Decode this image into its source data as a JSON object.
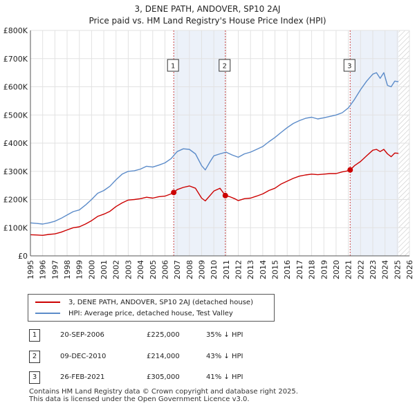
{
  "title_line1": "3, DENE PATH, ANDOVER, SP10 2AJ",
  "title_line2": "Price paid vs. HM Land Registry's House Price Index (HPI)",
  "colors": {
    "property": "#cc0000",
    "hpi": "#5b8bc9",
    "sale_band": "#dde6f4",
    "marker_line": "#cc4444"
  },
  "chart_data": {
    "type": "line",
    "title": "3, DENE PATH, ANDOVER, SP10 2AJ - Price paid vs. HM Land Registry's House Price Index (HPI)",
    "xlabel": "",
    "ylabel": "",
    "xlim": [
      1995,
      2026
    ],
    "ylim": [
      0,
      800000
    ],
    "x_ticks": [
      "1995",
      "1996",
      "1997",
      "1998",
      "1999",
      "2000",
      "2001",
      "2002",
      "2003",
      "2004",
      "2005",
      "2006",
      "2007",
      "2008",
      "2009",
      "2010",
      "2011",
      "2012",
      "2013",
      "2014",
      "2015",
      "2016",
      "2017",
      "2018",
      "2019",
      "2020",
      "2021",
      "2022",
      "2023",
      "2024",
      "2025",
      "2026"
    ],
    "y_ticks": [
      {
        "value": 0,
        "label": "£0"
      },
      {
        "value": 100000,
        "label": "£100K"
      },
      {
        "value": 200000,
        "label": "£200K"
      },
      {
        "value": 300000,
        "label": "£300K"
      },
      {
        "value": 400000,
        "label": "£400K"
      },
      {
        "value": 500000,
        "label": "£500K"
      },
      {
        "value": 600000,
        "label": "£600K"
      },
      {
        "value": 700000,
        "label": "£700K"
      },
      {
        "value": 800000,
        "label": "£800K"
      }
    ],
    "forecast_start": 2025.1,
    "series": [
      {
        "name": "3, DENE PATH, ANDOVER, SP10 2AJ (detached house)",
        "x": [
          1995.0,
          1995.5,
          1996.0,
          1996.5,
          1997.0,
          1997.5,
          1998.0,
          1998.5,
          1999.0,
          1999.5,
          2000.0,
          2000.5,
          2001.0,
          2001.5,
          2002.0,
          2002.5,
          2003.0,
          2003.5,
          2004.0,
          2004.5,
          2005.0,
          2005.5,
          2006.0,
          2006.5,
          2006.72,
          2007.0,
          2007.5,
          2008.0,
          2008.5,
          2009.0,
          2009.3,
          2009.7,
          2010.0,
          2010.5,
          2010.94,
          2011.3,
          2011.7,
          2012.0,
          2012.5,
          2013.0,
          2013.5,
          2014.0,
          2014.5,
          2015.0,
          2015.5,
          2016.0,
          2016.5,
          2017.0,
          2017.5,
          2018.0,
          2018.5,
          2019.0,
          2019.5,
          2020.0,
          2020.5,
          2021.0,
          2021.15,
          2021.5,
          2022.0,
          2022.5,
          2023.0,
          2023.3,
          2023.6,
          2023.9,
          2024.2,
          2024.5,
          2024.8,
          2025.1
        ],
        "y": [
          75000,
          74000,
          73000,
          76000,
          78000,
          84000,
          92000,
          100000,
          103000,
          113000,
          125000,
          140000,
          148000,
          158000,
          175000,
          188000,
          198000,
          200000,
          203000,
          208000,
          205000,
          210000,
          212000,
          220000,
          225000,
          235000,
          243000,
          248000,
          240000,
          205000,
          195000,
          215000,
          230000,
          240000,
          214000,
          210000,
          203000,
          196000,
          203000,
          205000,
          212000,
          220000,
          232000,
          240000,
          255000,
          265000,
          275000,
          283000,
          287000,
          290000,
          288000,
          290000,
          292000,
          292000,
          298000,
          302000,
          305000,
          320000,
          335000,
          355000,
          375000,
          378000,
          370000,
          378000,
          362000,
          352000,
          365000,
          364000
        ]
      },
      {
        "name": "HPI: Average price, detached house, Test Valley",
        "x": [
          1995.0,
          1995.5,
          1996.0,
          1996.5,
          1997.0,
          1997.5,
          1998.0,
          1998.5,
          1999.0,
          1999.5,
          2000.0,
          2000.5,
          2001.0,
          2001.5,
          2002.0,
          2002.5,
          2003.0,
          2003.5,
          2004.0,
          2004.5,
          2005.0,
          2005.5,
          2006.0,
          2006.5,
          2007.0,
          2007.5,
          2008.0,
          2008.5,
          2009.0,
          2009.3,
          2009.7,
          2010.0,
          2010.5,
          2011.0,
          2011.5,
          2012.0,
          2012.5,
          2013.0,
          2013.5,
          2014.0,
          2014.5,
          2015.0,
          2015.5,
          2016.0,
          2016.5,
          2017.0,
          2017.5,
          2018.0,
          2018.5,
          2019.0,
          2019.5,
          2020.0,
          2020.5,
          2021.0,
          2021.5,
          2022.0,
          2022.5,
          2023.0,
          2023.3,
          2023.6,
          2023.9,
          2024.2,
          2024.5,
          2024.8,
          2025.1
        ],
        "y": [
          117000,
          115000,
          113000,
          117000,
          123000,
          133000,
          145000,
          157000,
          163000,
          180000,
          200000,
          222000,
          232000,
          247000,
          270000,
          290000,
          300000,
          302000,
          308000,
          318000,
          315000,
          322000,
          330000,
          345000,
          370000,
          380000,
          378000,
          362000,
          320000,
          305000,
          335000,
          355000,
          362000,
          368000,
          358000,
          350000,
          362000,
          368000,
          378000,
          388000,
          405000,
          420000,
          438000,
          455000,
          470000,
          480000,
          488000,
          492000,
          486000,
          490000,
          495000,
          500000,
          508000,
          525000,
          555000,
          590000,
          620000,
          645000,
          650000,
          630000,
          650000,
          605000,
          600000,
          620000,
          618000
        ]
      }
    ],
    "transactions": [
      {
        "label": "1",
        "x": 2006.72,
        "y": 225000,
        "date": "20-SEP-2006",
        "price": "£225,000",
        "hpi": "35% ↓ HPI"
      },
      {
        "label": "2",
        "x": 2010.94,
        "y": 214000,
        "date": "09-DEC-2010",
        "price": "£214,000",
        "hpi": "43% ↓ HPI"
      },
      {
        "label": "3",
        "x": 2021.15,
        "y": 305000,
        "date": "26-FEB-2021",
        "price": "£305,000",
        "hpi": "41% ↓ HPI"
      }
    ]
  },
  "legend": {
    "property": "3, DENE PATH, ANDOVER, SP10 2AJ (detached house)",
    "hpi": "HPI: Average price, detached house, Test Valley"
  },
  "footer": {
    "line1": "Contains HM Land Registry data © Crown copyright and database right 2025.",
    "line2": "This data is licensed under the Open Government Licence v3.0."
  }
}
